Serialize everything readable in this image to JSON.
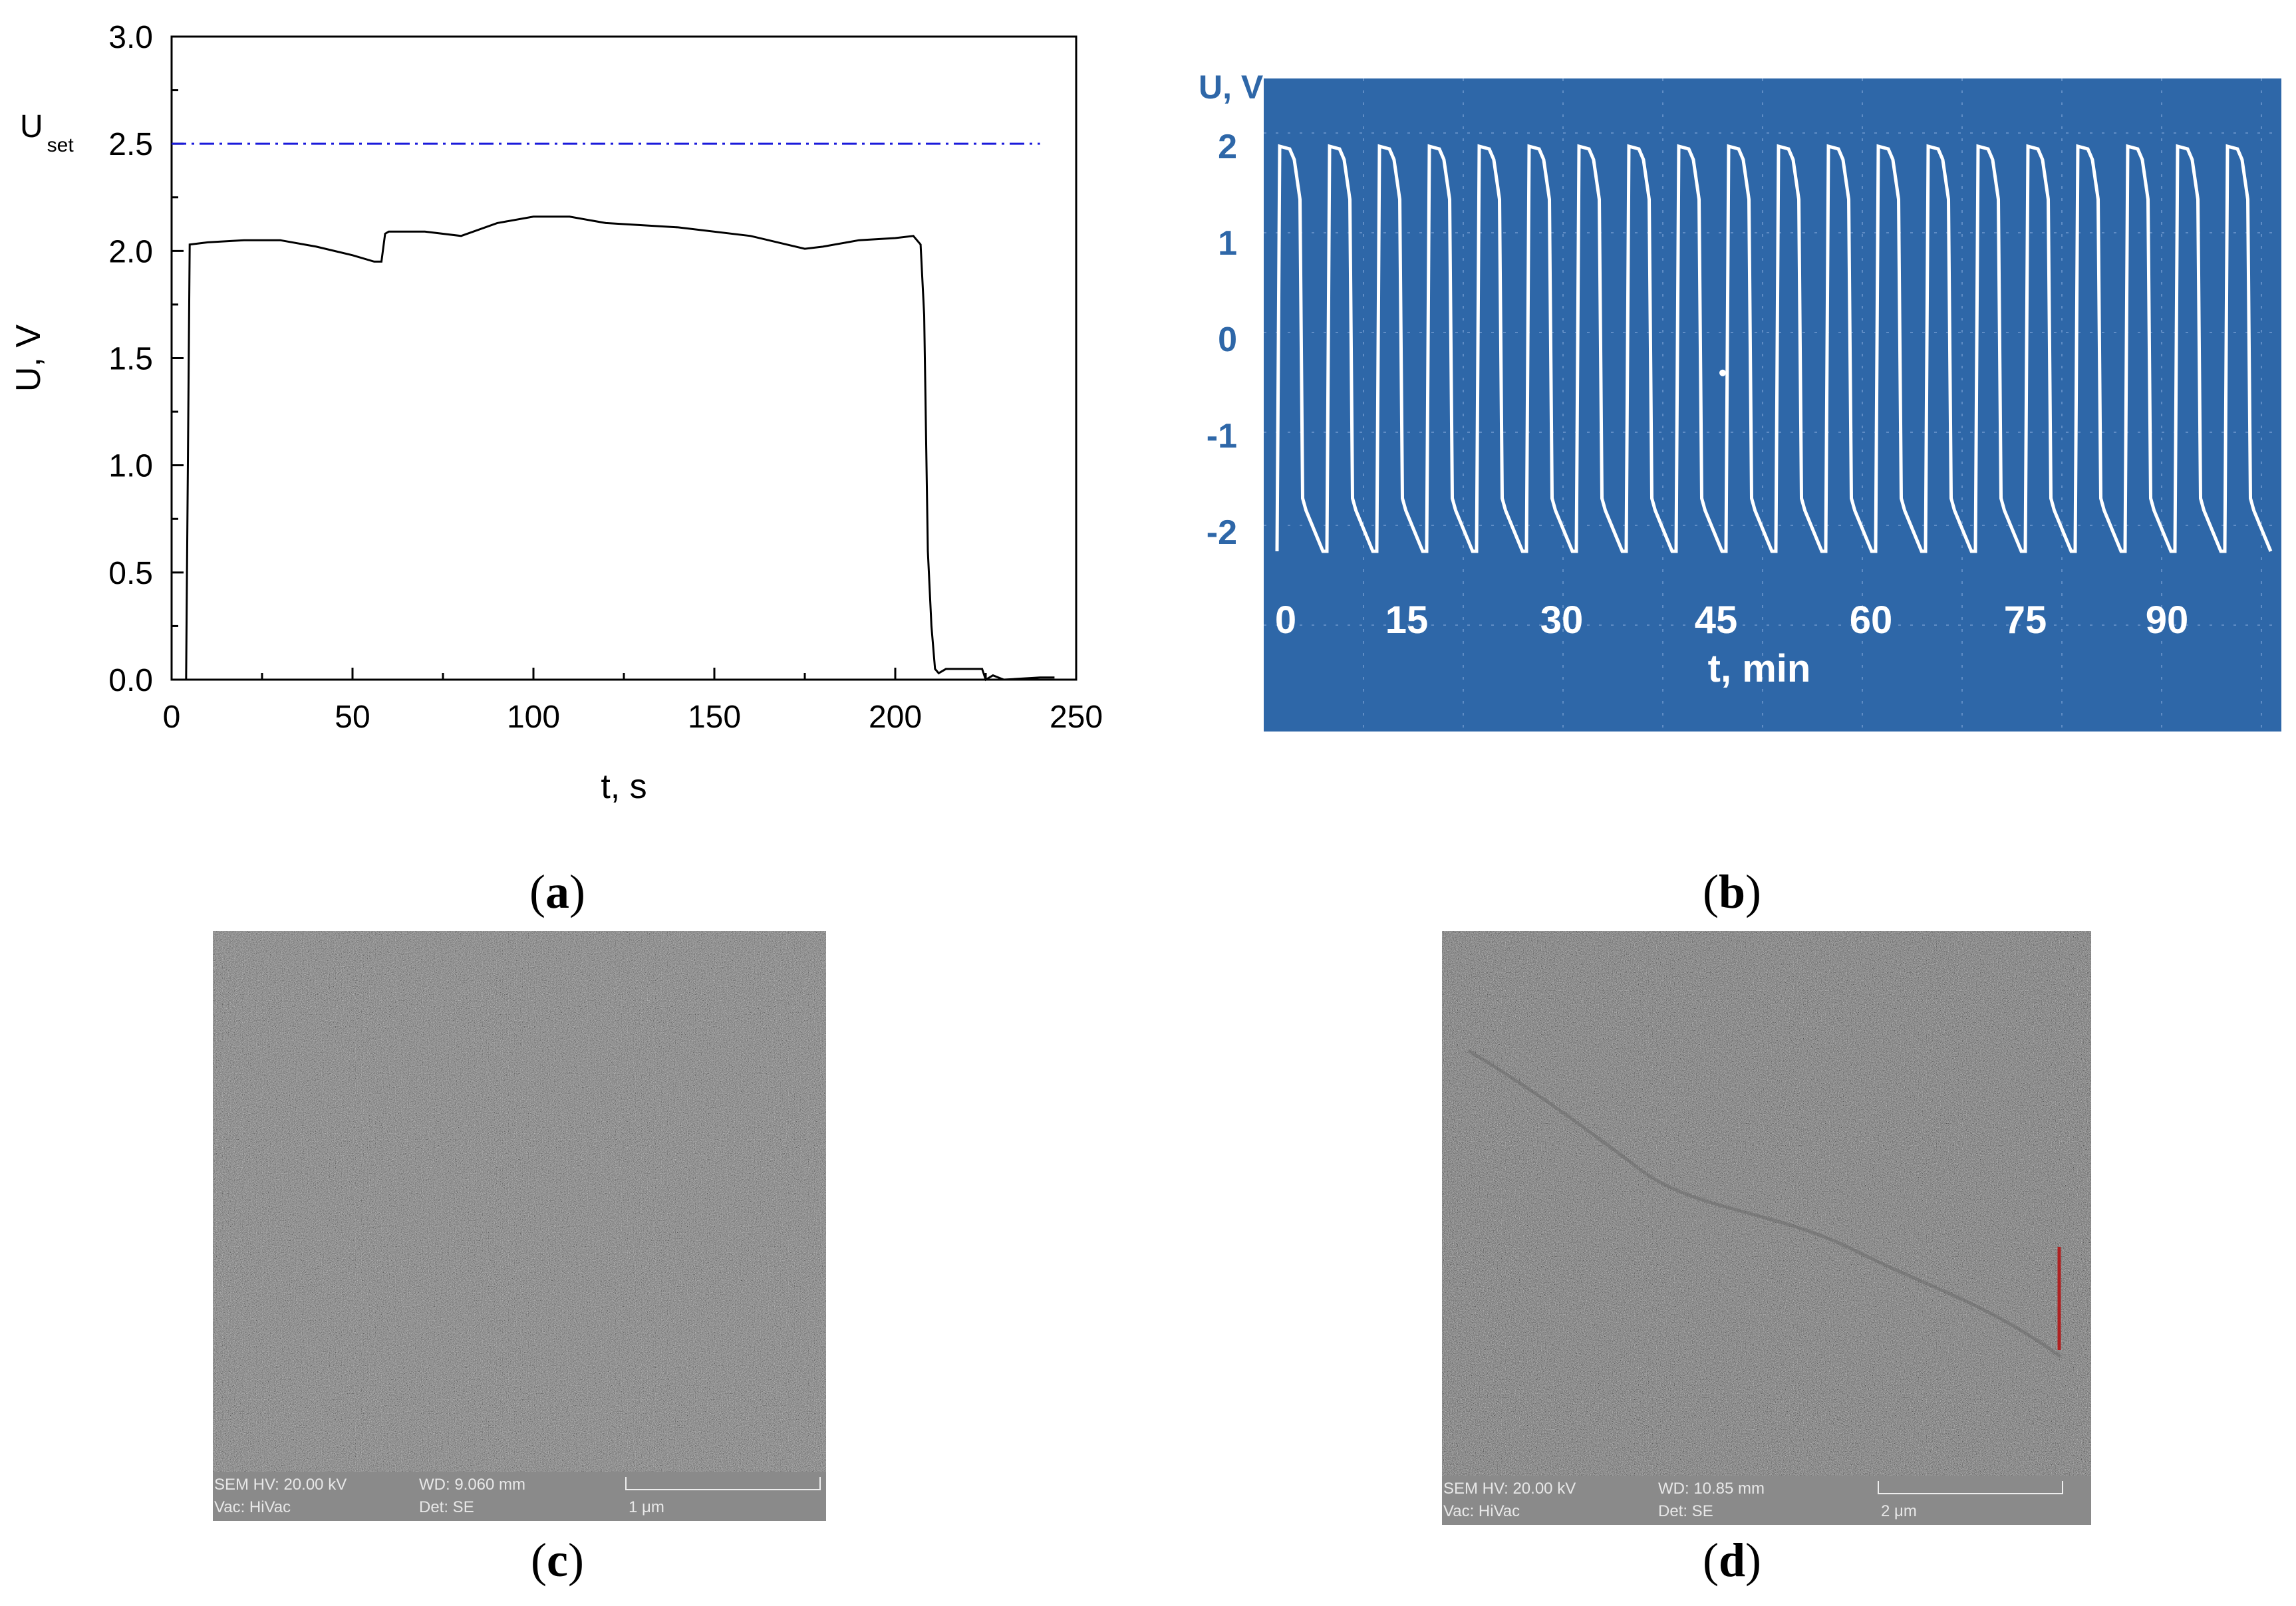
{
  "captions": {
    "a": "a",
    "b": "b",
    "c": "c",
    "d": "d"
  },
  "chart_data": [
    {
      "type": "line",
      "id": "a",
      "xlabel": "t, s",
      "ylabel": "U, V",
      "xlim": [
        0,
        250
      ],
      "ylim": [
        0,
        3.0
      ],
      "xticks": [
        "0",
        "50",
        "100",
        "150",
        "200",
        "250"
      ],
      "yticks": [
        "0.0",
        "0.5",
        "1.0",
        "1.5",
        "2.0",
        "2.5",
        "3.0"
      ],
      "reference_line": {
        "label_main": "U",
        "label_sub": "set",
        "y": 2.5,
        "color": "#1a1adb",
        "style": "dash-dot"
      },
      "series": [
        {
          "color": "#000000",
          "points": [
            [
              3,
              0
            ],
            [
              4,
              0
            ],
            [
              5,
              2.03
            ],
            [
              10,
              2.04
            ],
            [
              20,
              2.05
            ],
            [
              30,
              2.05
            ],
            [
              40,
              2.02
            ],
            [
              50,
              1.98
            ],
            [
              56,
              1.95
            ],
            [
              58,
              1.95
            ],
            [
              59,
              2.08
            ],
            [
              60,
              2.09
            ],
            [
              70,
              2.09
            ],
            [
              80,
              2.07
            ],
            [
              90,
              2.13
            ],
            [
              100,
              2.16
            ],
            [
              110,
              2.16
            ],
            [
              120,
              2.13
            ],
            [
              140,
              2.11
            ],
            [
              160,
              2.07
            ],
            [
              170,
              2.03
            ],
            [
              175,
              2.01
            ],
            [
              180,
              2.02
            ],
            [
              190,
              2.05
            ],
            [
              200,
              2.06
            ],
            [
              205,
              2.07
            ],
            [
              207,
              2.03
            ],
            [
              208,
              1.7
            ],
            [
              209,
              0.6
            ],
            [
              210,
              0.25
            ],
            [
              211,
              0.05
            ],
            [
              212,
              0.03
            ],
            [
              214,
              0.05
            ],
            [
              224,
              0.05
            ],
            [
              225,
              0.0
            ],
            [
              227,
              0.02
            ],
            [
              230,
              0.0
            ],
            [
              240,
              0.01
            ],
            [
              244,
              0.01
            ]
          ]
        }
      ]
    },
    {
      "type": "line",
      "id": "b",
      "xlabel": "t, min",
      "ylabel": "U, V",
      "xticks": [
        "0",
        "15",
        "30",
        "45",
        "60",
        "75",
        "90"
      ],
      "yticks": [
        "2",
        "1",
        "0",
        "-1",
        "-2"
      ],
      "ylim": [
        -2.5,
        2.5
      ],
      "background": "#2e67a8",
      "trace_color": "#ffffff",
      "cycles": 20,
      "levels": {
        "high_peak": 2.0,
        "high_plateau": 1.45,
        "low_peak": -2.2,
        "low_plateau": -1.65
      }
    }
  ],
  "sem_images": {
    "c": {
      "hv": "SEM HV: 20.00 kV",
      "wd": "WD: 9.060 mm",
      "vac": "Vac: HiVac",
      "det": "Det: SE",
      "scale": "1 μm"
    },
    "d": {
      "hv": "SEM HV: 20.00 kV",
      "wd": "WD: 10.85 mm",
      "vac": "Vac: HiVac",
      "det": "Det: SE",
      "scale": "2 μm"
    }
  }
}
